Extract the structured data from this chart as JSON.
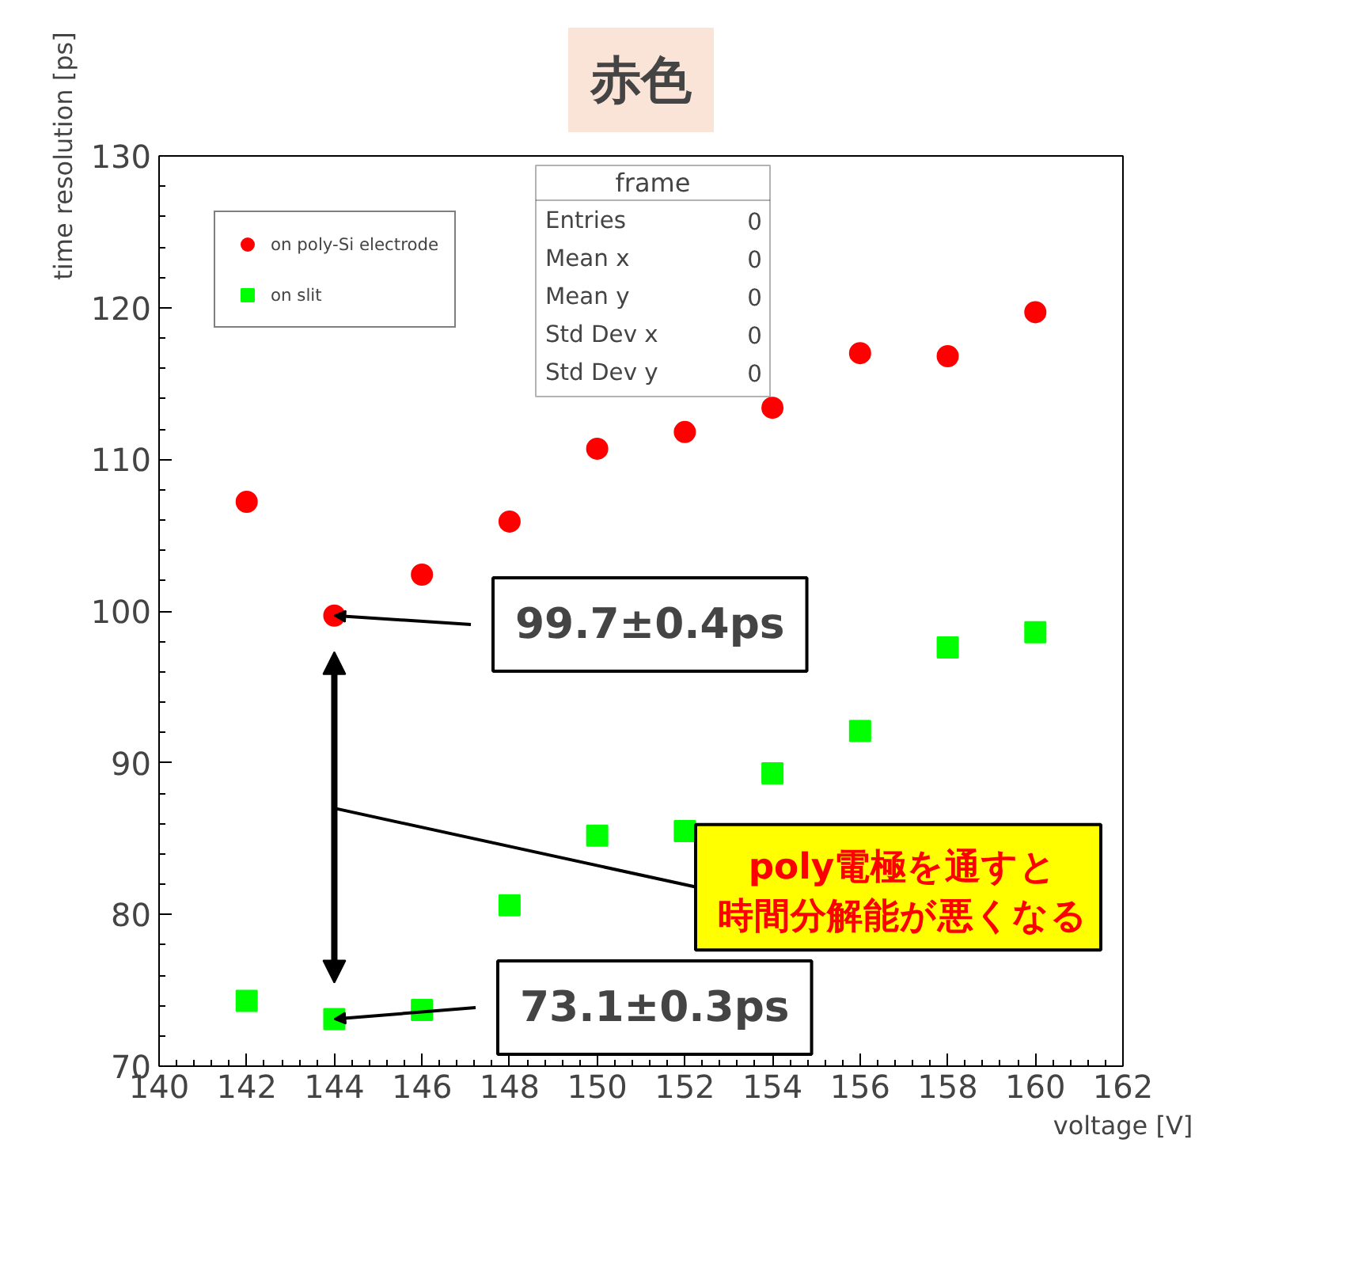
{
  "chart_data": {
    "type": "scatter",
    "title": "赤色",
    "xlabel": "voltage [V]",
    "ylabel": "time resolution [ps]",
    "x": [
      142,
      144,
      146,
      148,
      150,
      152,
      154,
      156,
      158,
      160
    ],
    "series": [
      {
        "name": "on poly-Si electrode",
        "color": "#ff0000",
        "marker": "circle",
        "values": [
          107.2,
          99.7,
          102.4,
          105.9,
          110.7,
          111.8,
          113.4,
          117.0,
          116.8,
          119.7
        ]
      },
      {
        "name": "on slit",
        "color": "#00ff00",
        "marker": "square",
        "values": [
          74.3,
          73.1,
          73.7,
          80.6,
          85.2,
          85.5,
          89.3,
          92.1,
          97.6,
          98.6
        ]
      }
    ],
    "xlim": [
      140,
      162
    ],
    "xticks": [
      140,
      142,
      144,
      146,
      148,
      150,
      152,
      154,
      156,
      158,
      160,
      162
    ],
    "ylim": [
      70,
      130
    ],
    "yticks": [
      70,
      80,
      90,
      100,
      110,
      120,
      130
    ],
    "grid": false,
    "legend": "top left",
    "annotations": [
      {
        "text": "99.7±0.4ps",
        "x": 144,
        "y": 99.7
      },
      {
        "text": "73.1±0.3ps",
        "x": 144,
        "y": 73.1
      },
      "poly電極を通すと時間分解能が悪くなる",
      "frame",
      "Entries 0",
      "Mean x 0",
      "Mean y 0",
      "Std Dev x 0",
      "Std Dev y 0"
    ]
  }
}
